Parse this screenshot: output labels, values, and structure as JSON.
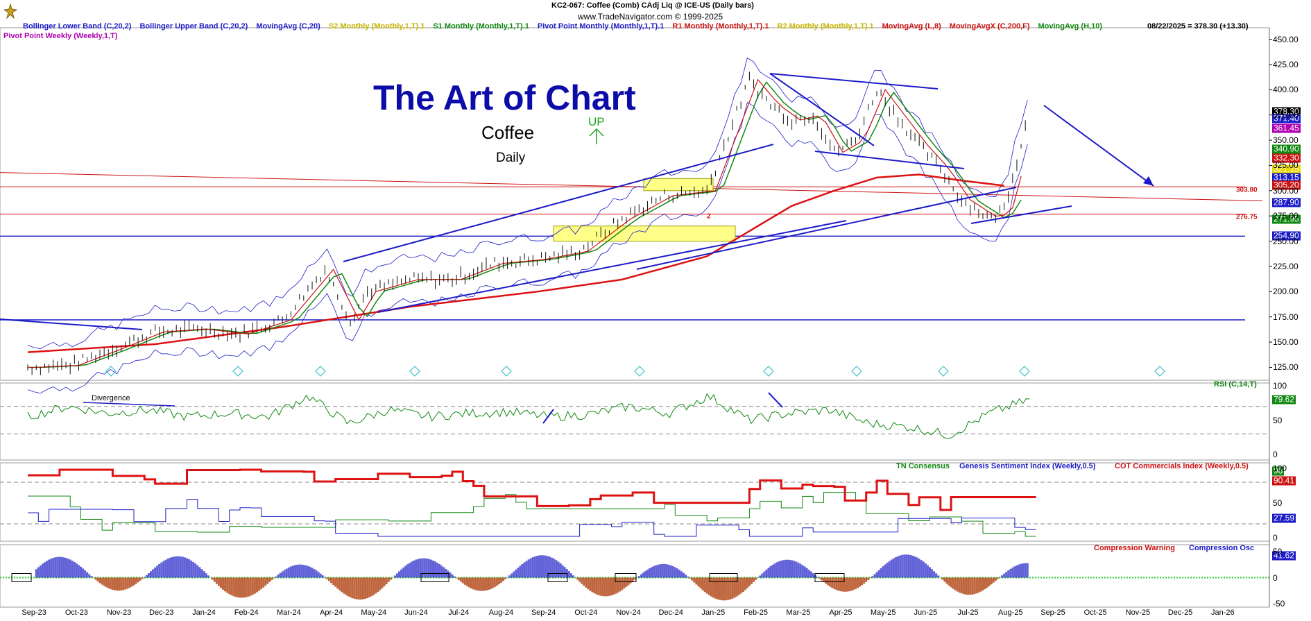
{
  "header": {
    "symbol_line": "KC2-067:  Coffee (Comb) CAdj Liq @ ICE-US  (Daily bars)",
    "copyright": "www.TradeNavigator.com © 1999-2025",
    "date_price": "08/22/2025 = 378.30 (+13.30)"
  },
  "legend": [
    {
      "text": "Bollinger Lower Band (C,20,2)",
      "color": "#1c1cc8"
    },
    {
      "text": "Bollinger Upper Band (C,20,2)",
      "color": "#1c1cc8"
    },
    {
      "text": "MovingAvg (C,20)",
      "color": "#1c1cc8"
    },
    {
      "text": "S2 Monthly (Monthly,1,T).1",
      "color": "#c8b400"
    },
    {
      "text": "S1 Monthly (Monthly,1,T).1",
      "color": "#118811"
    },
    {
      "text": "Pivot Point Monthly (Monthly,1,T).1",
      "color": "#1c1cc8"
    },
    {
      "text": "R1 Monthly (Monthly,1,T).1",
      "color": "#cc1111"
    },
    {
      "text": "R2 Monthly (Monthly,1,T).1",
      "color": "#c8b400"
    },
    {
      "text": "MovingAvg (L,8)",
      "color": "#cc1111"
    },
    {
      "text": "MovingAvgX (C,200,F)",
      "color": "#cc1111"
    },
    {
      "text": "MovingAvg (H,10)",
      "color": "#118811"
    }
  ],
  "legend2": {
    "text": "Pivot Point Weekly (Weekly,1,T)",
    "color": "#b000b0"
  },
  "annotations": {
    "title": "The Art of Chart",
    "subject": "Coffee",
    "timeframe": "Daily",
    "trend": "UP",
    "divergence": "Divergence",
    "level_303": "303.80",
    "level_276": "276.75",
    "marker_2": "2"
  },
  "price_badges": [
    {
      "text": "378.30",
      "value": 378.3,
      "bg": "#000000",
      "fg": "#ffffff"
    },
    {
      "text": "371.40",
      "value": 371.4,
      "bg": "#1c1cc8",
      "fg": "#ffffff"
    },
    {
      "text": "361.45",
      "value": 361.45,
      "bg": "#b000b0",
      "fg": "#ffffff"
    },
    {
      "text": "340.90",
      "value": 340.9,
      "bg": "#118811",
      "fg": "#ffffff"
    },
    {
      "text": "332.30",
      "value": 332.3,
      "bg": "#cc1111",
      "fg": "#ffffff"
    },
    {
      "text": "321.15",
      "value": 321.15,
      "bg": "#e8d800",
      "fg": "#ffffff"
    },
    {
      "text": "313.15",
      "value": 313.15,
      "bg": "#1c1cc8",
      "fg": "#ffffff"
    },
    {
      "text": "305.20",
      "value": 305.2,
      "bg": "#cc1111",
      "fg": "#ffffff"
    },
    {
      "text": "287.90",
      "value": 287.9,
      "bg": "#1c1cc8",
      "fg": "#ffffff"
    },
    {
      "text": "271.95",
      "value": 271.95,
      "bg": "#118811",
      "fg": "#ffffff"
    },
    {
      "text": "254.90",
      "value": 254.9,
      "bg": "#1c1cc8",
      "fg": "#ffffff"
    }
  ],
  "indicators": {
    "rsi": {
      "label": "RSI (C,14,T)",
      "color": "#118811",
      "value": "79.62"
    },
    "sentiment": {
      "labels": [
        {
          "text": "TN Consensus",
          "color": "#118811"
        },
        {
          "text": "Genesis Sentiment Index (Weekly,0.5)",
          "color": "#1c1cc8"
        },
        {
          "text": "COT Commercials Index (Weekly,0.5)",
          "color": "#cc1111"
        }
      ],
      "values": [
        {
          "text": "98",
          "value": 98,
          "bg": "#118811"
        },
        {
          "text": "90.41",
          "value": 90.41,
          "bg": "#cc1111"
        },
        {
          "text": "27.59",
          "value": 27.59,
          "bg": "#1c1cc8"
        }
      ]
    },
    "compression": {
      "labels": [
        {
          "text": "Compression Warning",
          "color": "#cc1111"
        },
        {
          "text": "Compression Osc",
          "color": "#1c1cc8"
        }
      ],
      "value": "41.62"
    }
  },
  "chart_data": {
    "type": "line",
    "title": "The Art of Chart",
    "subtitle": "Coffee",
    "x_labels": [
      "Sep-23",
      "Oct-23",
      "Nov-23",
      "Dec-23",
      "Jan-24",
      "Feb-24",
      "Mar-24",
      "Apr-24",
      "May-24",
      "Jun-24",
      "Jul-24",
      "Aug-24",
      "Sep-24",
      "Oct-24",
      "Nov-24",
      "Dec-24",
      "Jan-25",
      "Feb-25",
      "Mar-25",
      "Apr-25",
      "May-25",
      "Jun-25",
      "Jul-25",
      "Aug-25",
      "Sep-25",
      "Oct-25",
      "Nov-25",
      "Dec-25",
      "Jan-26"
    ],
    "y_ticks": [
      125,
      150,
      175,
      200,
      225,
      250,
      275,
      300,
      325,
      350,
      375,
      400,
      425,
      450
    ],
    "ylim": [
      115,
      460
    ],
    "price_series": {
      "name": "Coffee (Daily, approx. close)",
      "months": [
        0,
        1,
        2,
        3,
        4,
        5,
        6,
        7,
        7.6,
        8,
        9,
        10,
        11,
        12,
        13,
        14,
        15,
        16,
        17,
        17.5,
        18,
        18.5,
        19,
        19.5,
        20,
        21,
        21.5,
        22,
        22.7,
        23,
        23.3,
        23.6
      ],
      "values": [
        125,
        127,
        143,
        160,
        163,
        158,
        172,
        222,
        172,
        200,
        212,
        212,
        228,
        232,
        240,
        272,
        295,
        300,
        410,
        385,
        370,
        375,
        338,
        350,
        400,
        345,
        322,
        291,
        272,
        283,
        330,
        380
      ]
    },
    "ma200": {
      "name": "MovingAvgX (C,200,F)",
      "months": [
        0,
        3,
        6,
        9,
        12,
        14,
        16,
        17,
        18,
        19,
        20,
        21,
        22,
        23
      ],
      "values": [
        140,
        148,
        165,
        185,
        200,
        212,
        235,
        260,
        285,
        300,
        313,
        316,
        310,
        305
      ]
    },
    "horizontal_levels": [
      {
        "value": 254.9,
        "color": "#1c1cc8"
      },
      {
        "value": 172,
        "color": "#1c1cc8"
      },
      {
        "value": 303.8,
        "color": "#cc1111"
      },
      {
        "value": 276.75,
        "color": "#cc1111"
      }
    ],
    "rsi": {
      "ticks": [
        0,
        50,
        100
      ],
      "last": 79.62,
      "values": [
        55,
        70,
        60,
        65,
        55,
        60,
        55,
        85,
        45,
        65,
        55,
        60,
        62,
        55,
        58,
        70,
        60,
        85,
        50,
        60,
        65,
        45,
        40,
        28,
        60,
        80
      ]
    },
    "sentiment": {
      "ticks": [
        0,
        50,
        100
      ]
    },
    "compression": {
      "ticks": [
        -50,
        0,
        50
      ]
    }
  }
}
